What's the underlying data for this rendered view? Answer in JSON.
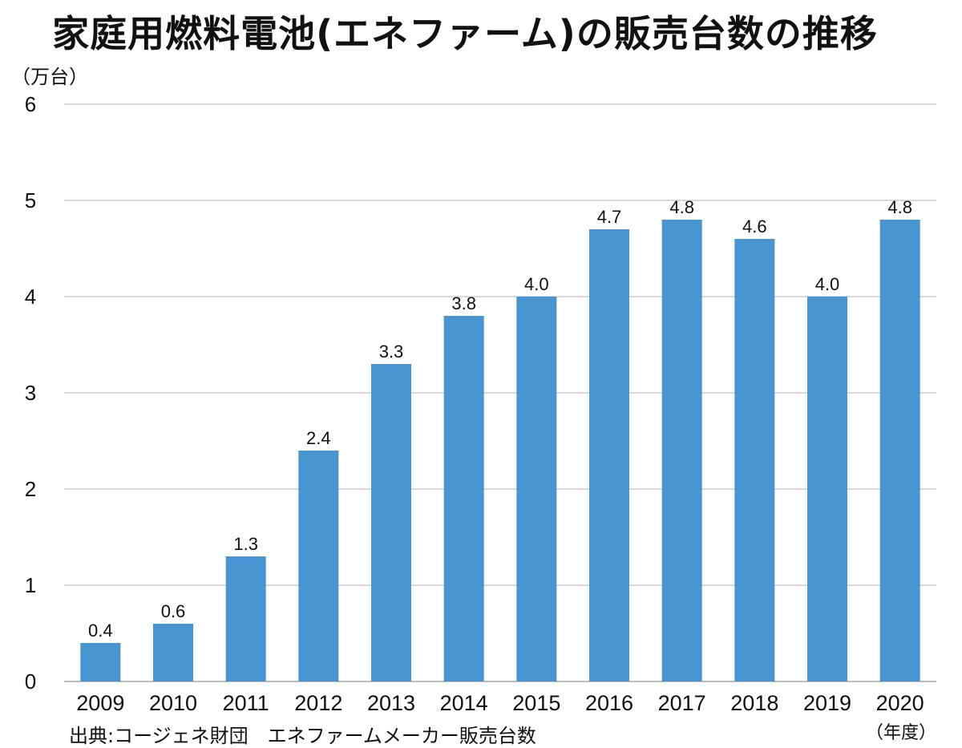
{
  "chart_data": {
    "type": "bar",
    "title": "家庭用燃料電池(エネファーム)の販売台数の推移",
    "ylabel": "（万台）",
    "xlabel": "（年度）",
    "categories": [
      "2009",
      "2010",
      "2011",
      "2012",
      "2013",
      "2014",
      "2015",
      "2016",
      "2017",
      "2018",
      "2019",
      "2020"
    ],
    "values": [
      0.4,
      0.6,
      1.3,
      2.4,
      3.3,
      3.8,
      4.0,
      4.7,
      4.8,
      4.6,
      4.0,
      4.8
    ],
    "data_labels": [
      "0.4",
      "0.6",
      "1.3",
      "2.4",
      "3.3",
      "3.8",
      "4.0",
      "4.7",
      "4.8",
      "4.6",
      "4.0",
      "4.8"
    ],
    "ylim": [
      0,
      6
    ],
    "yticks": [
      "0",
      "1",
      "2",
      "3",
      "4",
      "5",
      "6"
    ],
    "grid": true,
    "legend": "none",
    "bar_color": "#4a93d1",
    "grid_color": "#d9d9d9",
    "source": "出典:コージェネ財団　エネファームメーカー販売台数"
  }
}
